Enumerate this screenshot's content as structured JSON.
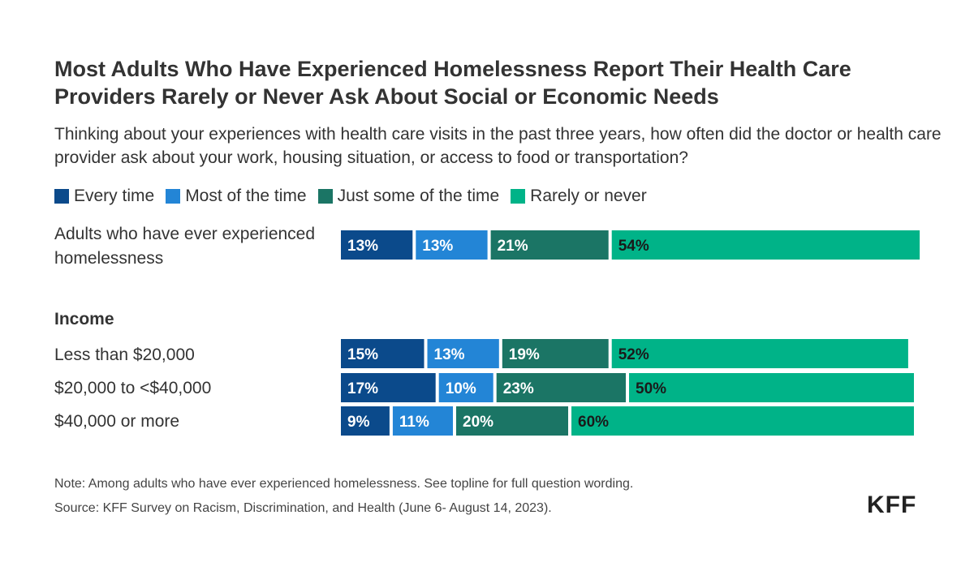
{
  "title": "Most Adults Who Have Experienced Homelessness Report Their Health Care Providers Rarely or Never Ask About Social or Economic Needs",
  "subtitle": "Thinking about your experiences with health care visits in the past three years, how often did the doctor or health care provider ask about your work, housing situation, or access to food or transportation?",
  "group_label": "Income",
  "note": "Note: Among adults who have ever experienced homelessness. See topline for full question wording.",
  "source": "Source: KFF Survey on Racism, Discrimination, and Health (June 6- August 14, 2023).",
  "logo": "KFF",
  "chart_data": {
    "type": "bar",
    "orientation": "horizontal",
    "stacked": true,
    "categories": [
      "Adults who have ever experienced homelessness",
      "Less than $20,000",
      "$20,000 to <$40,000",
      "$40,000 or more"
    ],
    "series": [
      {
        "name": "Every time",
        "color": "#0b4a8b",
        "values": [
          13,
          15,
          17,
          9
        ]
      },
      {
        "name": "Most of the time",
        "color": "#2385d6",
        "values": [
          13,
          13,
          10,
          11
        ]
      },
      {
        "name": "Just some of the time",
        "color": "#1b7565",
        "values": [
          21,
          19,
          23,
          20
        ]
      },
      {
        "name": "Rarely or never",
        "color": "#00b388",
        "values": [
          54,
          52,
          50,
          60
        ]
      }
    ],
    "data_label_colors": [
      "#ffffff",
      "#ffffff",
      "#ffffff",
      "#1a1a1a"
    ],
    "legend_position": "top-left",
    "grid": false
  }
}
